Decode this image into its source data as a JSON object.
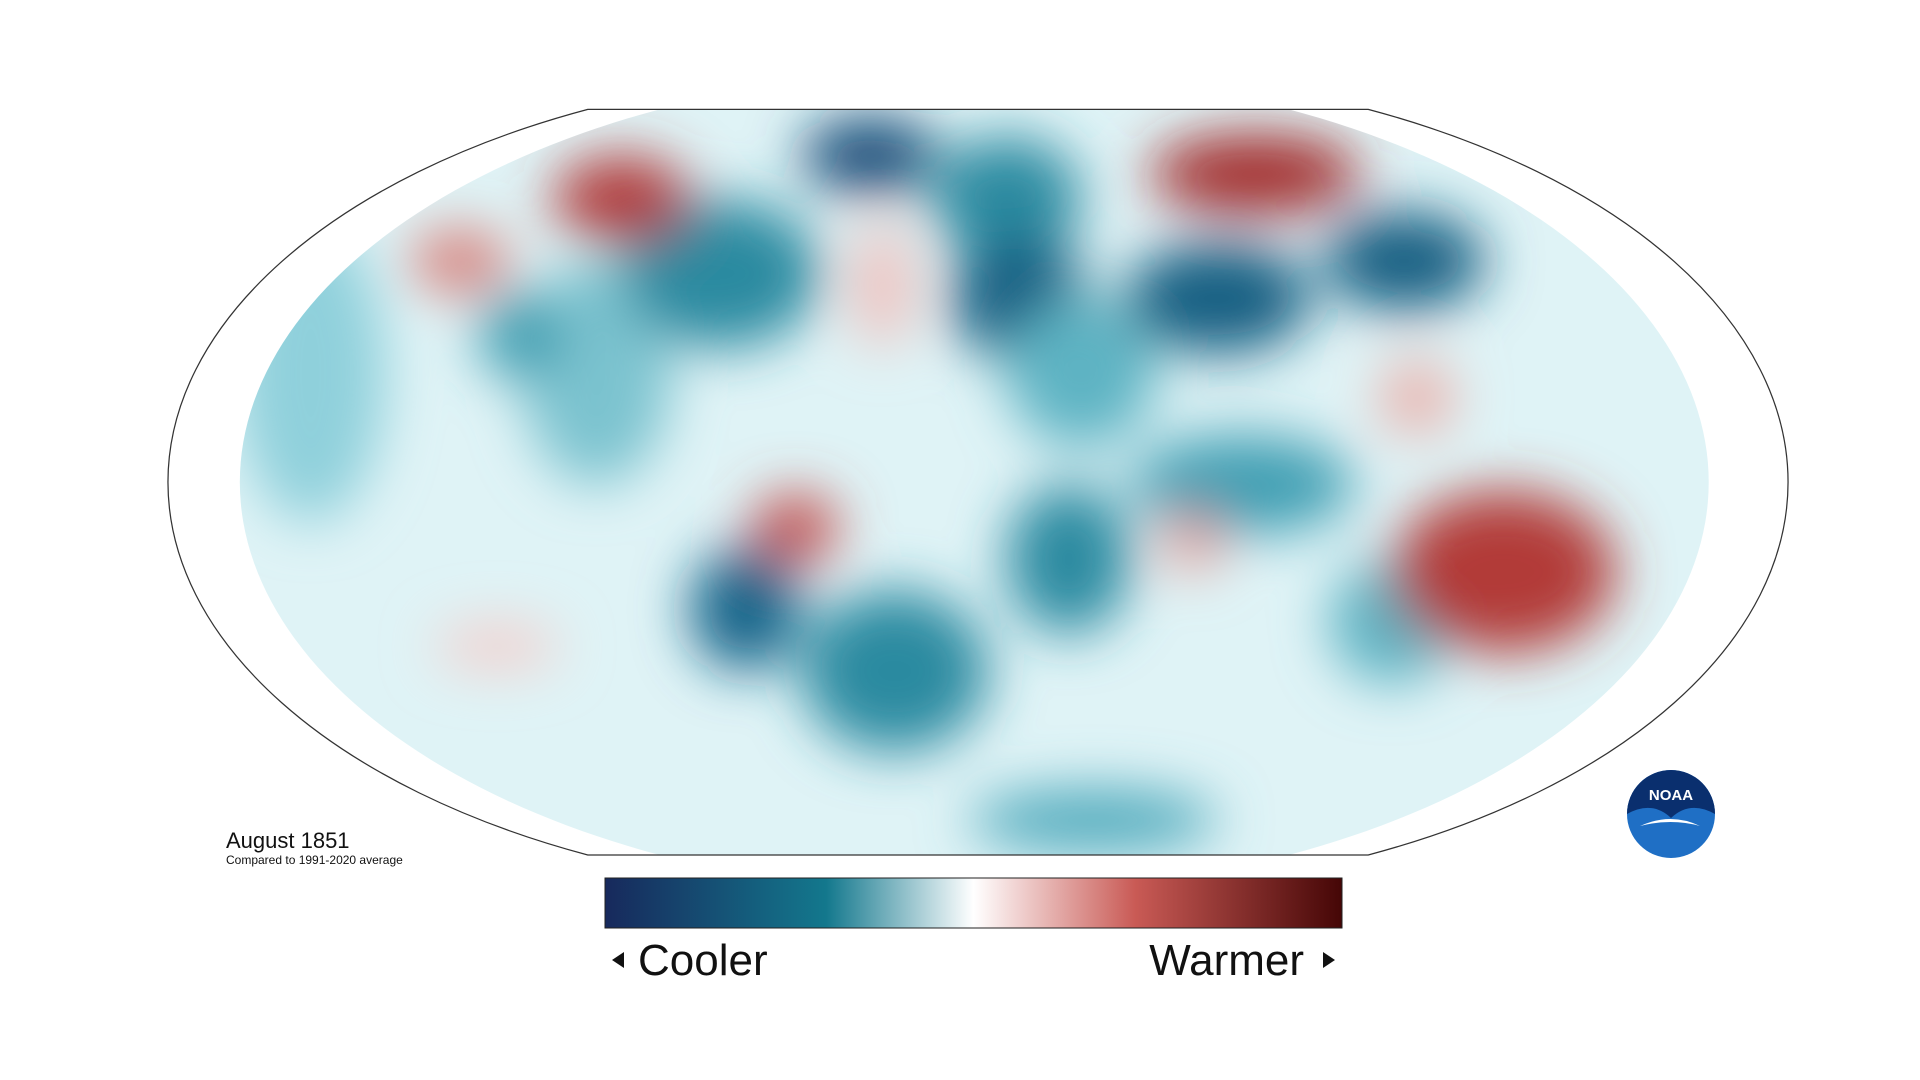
{
  "title": "August 1851",
  "subtitle": "Compared to 1991-2020 average",
  "legend": {
    "low": "Cooler",
    "high": "Warmer"
  },
  "logo": "NOAA"
}
